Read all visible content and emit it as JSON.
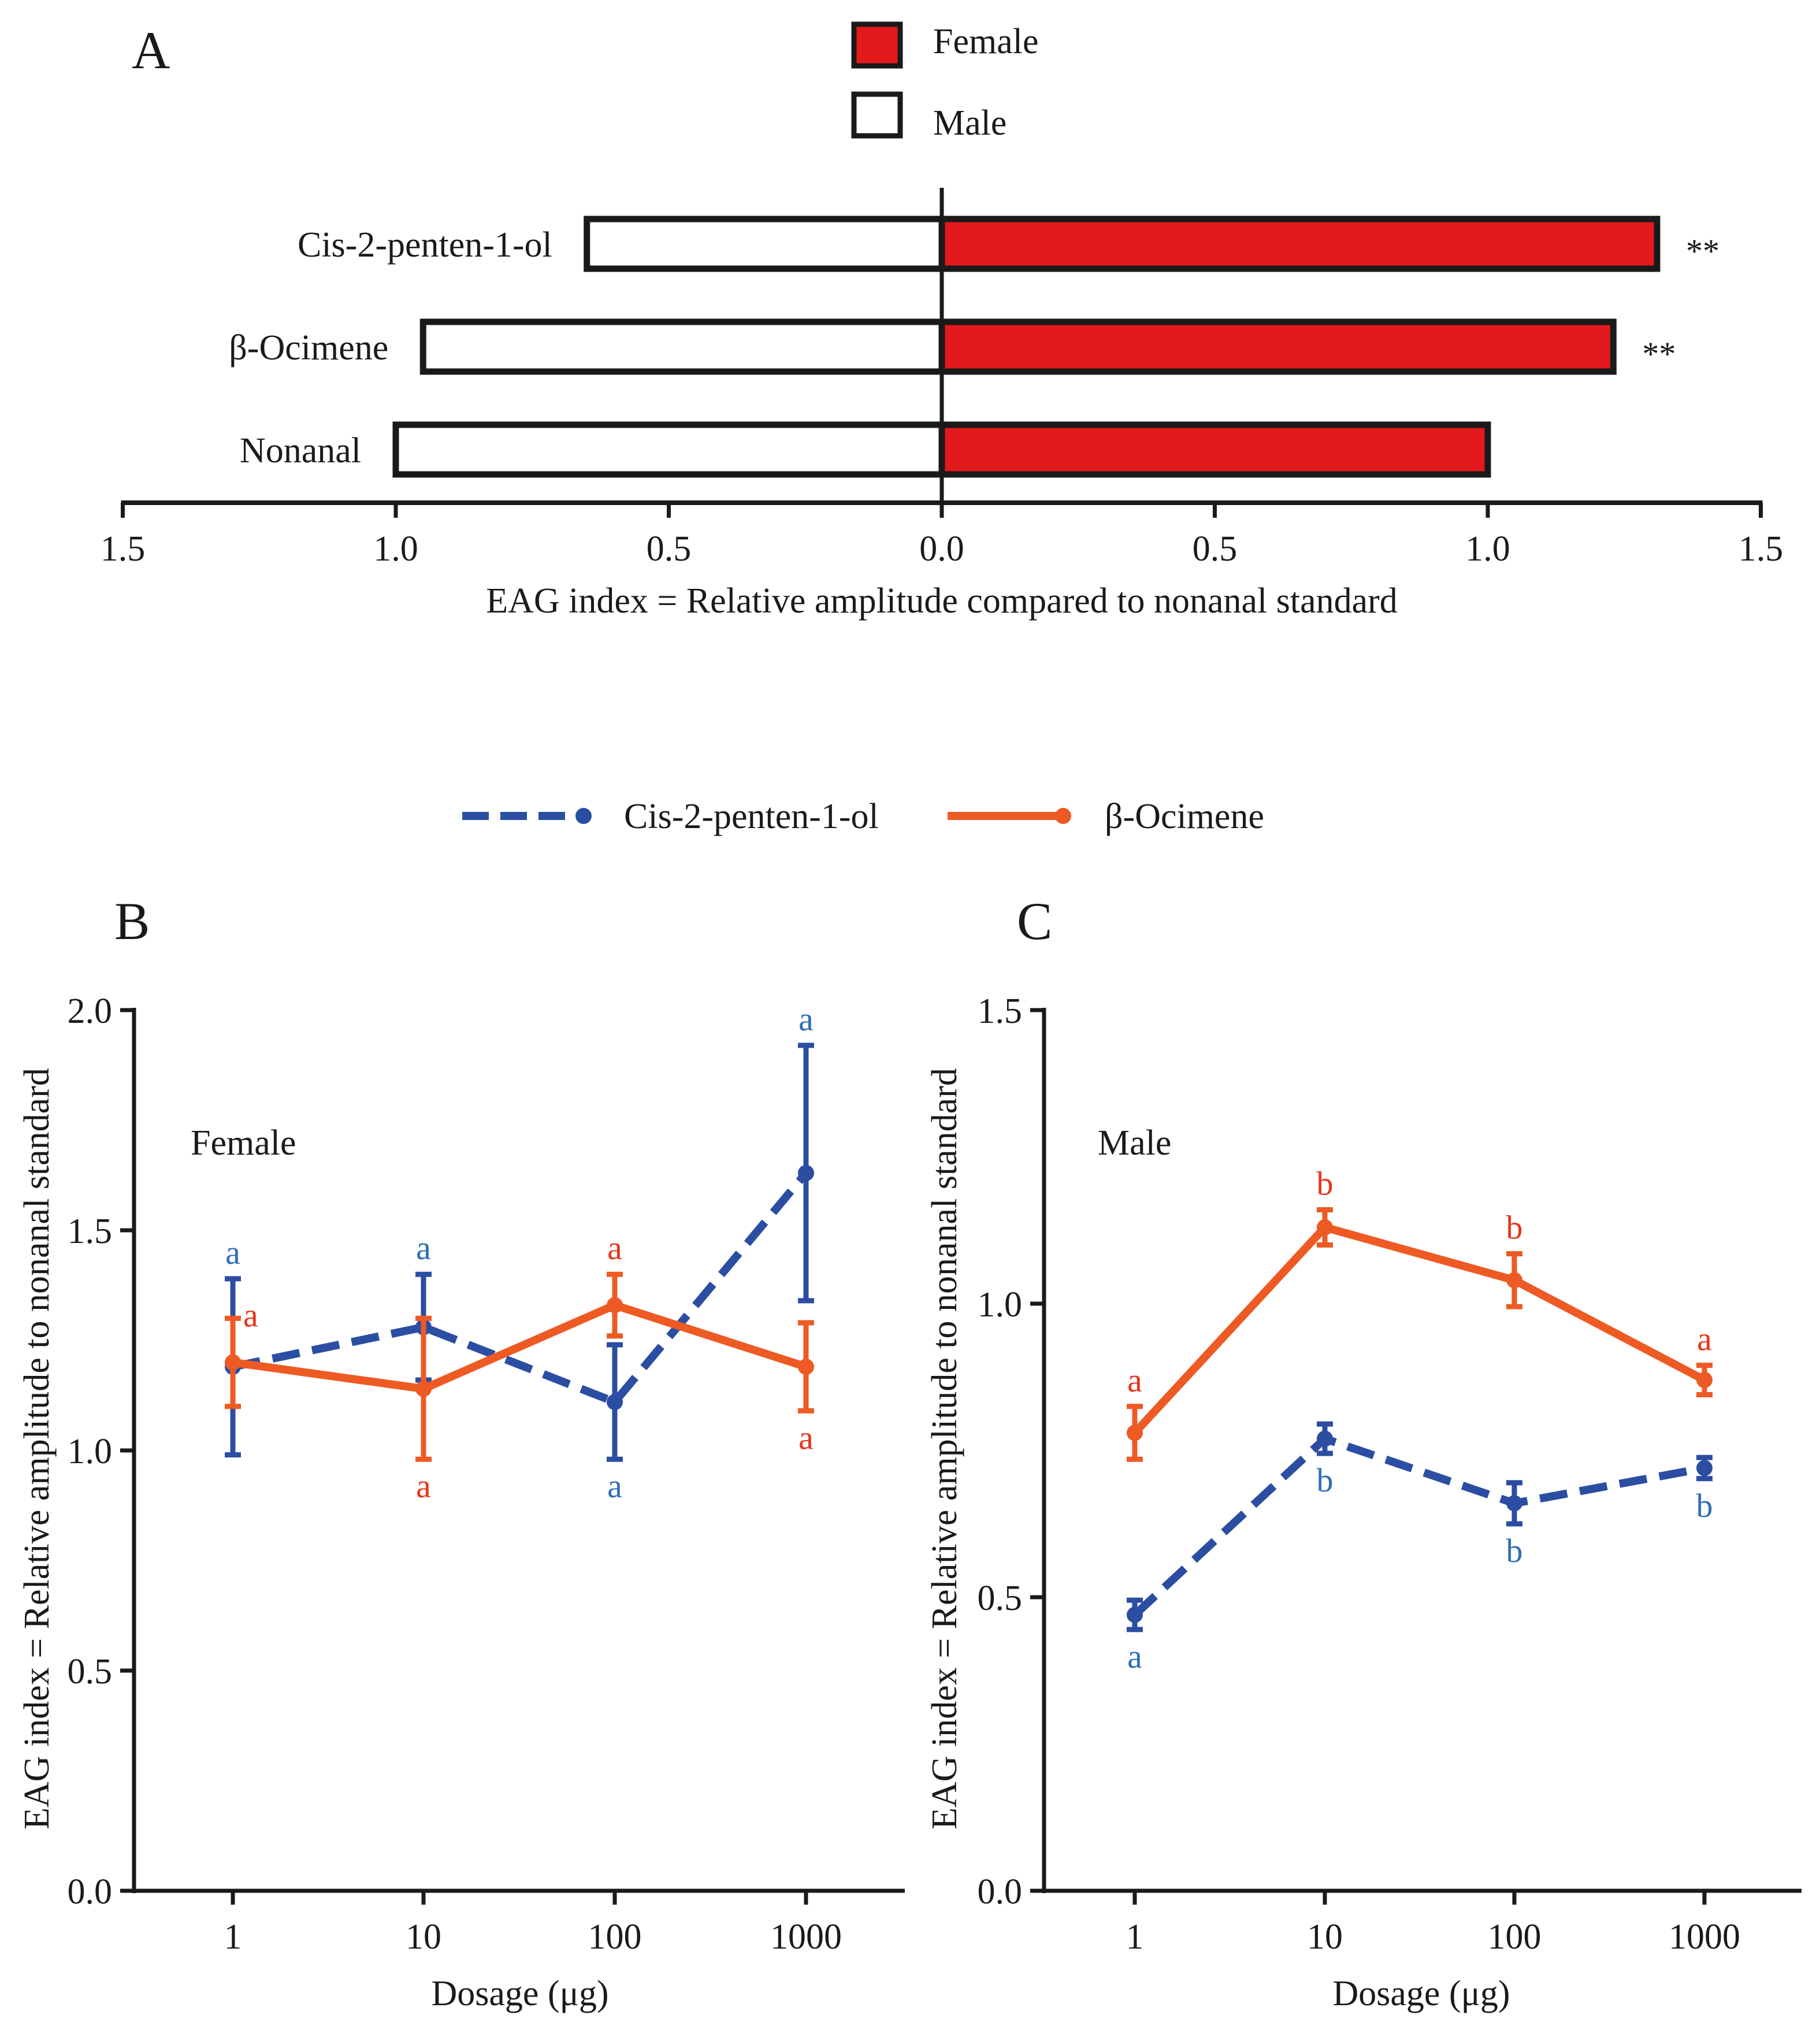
{
  "colors": {
    "female_fill": "#e31a1c",
    "male_fill": "#ffffff",
    "bar_stroke": "#1a1a1a",
    "cis_line": "#2b4ea2",
    "cis_letter": "#2f6eb5",
    "oci_line": "#ee5a24",
    "oci_letter": "#e8341c"
  },
  "legend_top": {
    "female": "Female",
    "male": "Male"
  },
  "legend_lines": {
    "cis": "Cis-2-penten-1-ol",
    "oci": "β-Ocimene"
  },
  "chart_data": [
    {
      "panel": "A",
      "type": "bar",
      "orientation": "horizontal-butterfly",
      "xlabel": "EAG index = Relative amplitude compared to nonanal standard",
      "xlim": [
        -1.5,
        1.5
      ],
      "tick_values": [
        -1.5,
        -1.0,
        -0.5,
        0.0,
        0.5,
        1.0,
        1.5
      ],
      "tick_labels": [
        "1.5",
        "1.0",
        "0.5",
        "0.0",
        "0.5",
        "1.0",
        "1.5"
      ],
      "categories": [
        "Cis-2-penten-1-ol",
        "β-Ocimene",
        "Nonanal"
      ],
      "series": [
        {
          "name": "Female",
          "side": "right",
          "values": [
            1.31,
            1.23,
            1.0
          ]
        },
        {
          "name": "Male",
          "side": "left",
          "values": [
            0.65,
            0.95,
            1.0
          ]
        }
      ],
      "annotations": [
        "**",
        "**",
        ""
      ]
    },
    {
      "panel": "B",
      "type": "line",
      "title": "Female",
      "xlabel": "Dosage (μg)",
      "ylabel": "EAG index = Relative amplitude to nonanal standard",
      "x": [
        "1",
        "10",
        "100",
        "1000"
      ],
      "ylim": [
        0,
        2.0
      ],
      "y_ticks": [
        "0.0",
        "0.5",
        "1.0",
        "1.5",
        "2.0"
      ],
      "series": [
        {
          "name": "Cis-2-penten-1-ol",
          "style": "dashed",
          "values": [
            1.19,
            1.28,
            1.11,
            1.63
          ],
          "errors": [
            0.2,
            0.12,
            0.13,
            0.29
          ],
          "letters": [
            "a",
            "a",
            "a",
            "a"
          ],
          "letter_pos": [
            "above",
            "above",
            "below",
            "above"
          ]
        },
        {
          "name": "β-Ocimene",
          "style": "solid",
          "values": [
            1.2,
            1.14,
            1.33,
            1.19
          ],
          "errors": [
            0.1,
            0.16,
            0.07,
            0.1
          ],
          "letters": [
            "a",
            "a",
            "a",
            "a"
          ],
          "letter_pos": [
            "right",
            "below",
            "above",
            "below"
          ]
        }
      ]
    },
    {
      "panel": "C",
      "type": "line",
      "title": "Male",
      "xlabel": "Dosage (μg)",
      "ylabel": "EAG index = Relative amplitude to nonanal standard",
      "x": [
        "1",
        "10",
        "100",
        "1000"
      ],
      "ylim": [
        0,
        1.5
      ],
      "y_ticks": [
        "0.0",
        "0.5",
        "1.0",
        "1.5"
      ],
      "series": [
        {
          "name": "Cis-2-penten-1-ol",
          "style": "dashed",
          "values": [
            0.47,
            0.77,
            0.66,
            0.72
          ],
          "errors": [
            0.025,
            0.025,
            0.035,
            0.018
          ],
          "letters": [
            "a",
            "b",
            "b",
            "b"
          ],
          "letter_pos": [
            "below",
            "below",
            "below",
            "below"
          ]
        },
        {
          "name": "β-Ocimene",
          "style": "solid",
          "values": [
            0.78,
            1.13,
            1.04,
            0.87
          ],
          "errors": [
            0.045,
            0.03,
            0.045,
            0.025
          ],
          "letters": [
            "a",
            "b",
            "b",
            "a"
          ],
          "letter_pos": [
            "above",
            "above",
            "above",
            "above"
          ]
        }
      ]
    }
  ]
}
